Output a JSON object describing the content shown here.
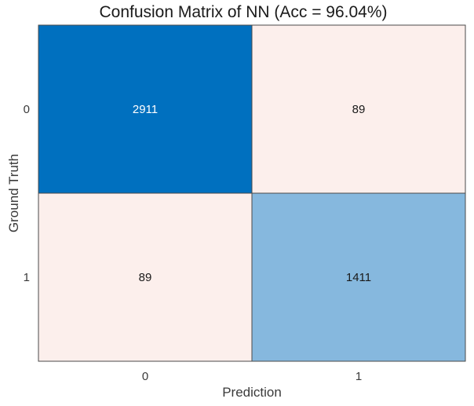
{
  "chart_data": {
    "type": "heatmap",
    "title": "Confusion Matrix of NN (Acc = 96.04%)",
    "xlabel": "Prediction",
    "ylabel": "Ground Truth",
    "x_categories": [
      "0",
      "1"
    ],
    "y_categories": [
      "0",
      "1"
    ],
    "values": [
      [
        2911,
        89
      ],
      [
        89,
        1411
      ]
    ],
    "colors": {
      "high": "#0070bf",
      "mid": "#7eb4dd",
      "low": "#fcefec",
      "text_dark": "#1a1a1a",
      "text_light": "#ffffff",
      "border": "#4a4a4a"
    },
    "colorbar": false,
    "grid": false
  }
}
